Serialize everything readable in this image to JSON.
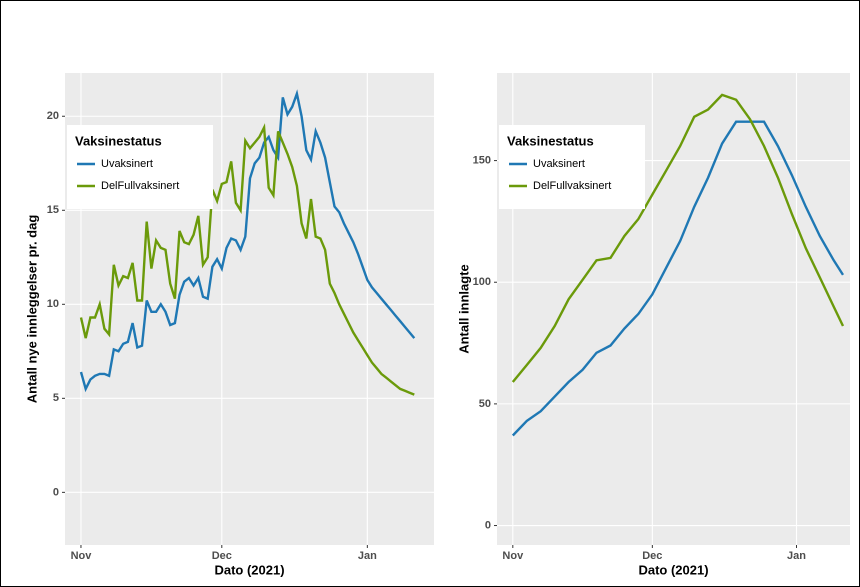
{
  "chart_data": [
    {
      "type": "line",
      "xlabel": "Dato (2021)",
      "ylabel": "Antall nye innleggelser pr. dag",
      "legend_title": "Vaksinestatus",
      "grid": true,
      "legend": "upper left",
      "x": [
        0,
        1,
        2,
        3,
        4,
        5,
        6,
        7,
        8,
        9,
        10,
        11,
        12,
        13,
        14,
        15,
        16,
        17,
        18,
        19,
        20,
        21,
        22,
        23,
        24,
        25,
        26,
        27,
        28,
        29,
        30,
        31,
        32,
        33,
        34,
        35,
        36,
        37,
        38,
        39,
        40,
        41,
        42,
        43,
        44,
        45,
        46,
        47,
        48,
        49,
        50,
        51,
        52,
        53,
        54,
        55,
        56,
        57,
        58,
        59,
        60,
        61,
        62,
        63,
        64,
        65,
        66,
        67,
        68,
        69,
        70,
        71
      ],
      "xlim": [
        -3.4,
        75.2
      ],
      "xticks": [
        {
          "value": 0,
          "label": "Nov"
        },
        {
          "value": 30,
          "label": "Dec"
        },
        {
          "value": 61,
          "label": "Jan"
        }
      ],
      "ylim": [
        -2.8,
        22.3
      ],
      "yticks": [
        0,
        5,
        10,
        15,
        20
      ],
      "series": [
        {
          "name": "Uvaksinert",
          "color": "#1f78b4",
          "values": [
            6.4,
            5.5,
            6.0,
            6.2,
            6.3,
            6.3,
            6.2,
            7.6,
            7.5,
            7.9,
            8.0,
            9.0,
            7.7,
            7.8,
            10.2,
            9.6,
            9.6,
            10.0,
            9.6,
            8.9,
            9.0,
            10.5,
            11.2,
            11.4,
            11.0,
            11.4,
            10.4,
            10.3,
            12.0,
            12.4,
            11.9,
            13.0,
            13.5,
            13.4,
            12.9,
            13.6,
            16.7,
            17.5,
            17.8,
            18.6,
            18.9,
            18.2,
            17.8,
            21.0,
            20.1,
            20.5,
            21.2,
            20.0,
            18.2,
            17.7,
            19.2,
            18.6,
            17.8,
            16.5,
            15.2,
            14.9,
            14.3,
            13.8,
            13.3,
            12.7,
            12.0,
            11.3,
            10.9,
            10.6,
            10.3,
            10.0,
            9.7,
            9.4,
            9.1,
            8.8,
            8.5,
            8.2
          ]
        },
        {
          "name": "DelFullvaksinert",
          "color": "#6b9a0a",
          "values": [
            9.3,
            8.2,
            9.3,
            9.3,
            10.0,
            8.7,
            8.4,
            12.1,
            11.0,
            11.5,
            11.4,
            12.2,
            10.2,
            10.2,
            14.4,
            11.9,
            13.4,
            13.0,
            12.9,
            11.1,
            10.3,
            13.9,
            13.3,
            13.2,
            13.7,
            14.7,
            12.1,
            12.5,
            16.1,
            15.5,
            16.4,
            16.5,
            17.6,
            15.4,
            15.0,
            18.7,
            18.3,
            18.6,
            18.9,
            19.4,
            16.2,
            15.8,
            19.2,
            18.6,
            18.0,
            17.3,
            16.3,
            14.3,
            13.5,
            15.6,
            13.6,
            13.5,
            12.9,
            11.1,
            10.6,
            10.0,
            9.5,
            9.0,
            8.5,
            8.1,
            7.7,
            7.3,
            6.9,
            6.6,
            6.3,
            6.1,
            5.9,
            5.7,
            5.5,
            5.4,
            5.3,
            5.2
          ]
        }
      ]
    },
    {
      "type": "line",
      "xlabel": "Dato (2021)",
      "ylabel": "Antall innlagte",
      "legend_title": "Vaksinestatus",
      "grid": true,
      "legend": "upper left",
      "x": [
        0,
        3,
        6,
        9,
        12,
        15,
        18,
        21,
        24,
        27,
        30,
        33,
        36,
        39,
        42,
        45,
        48,
        51,
        54,
        57,
        60,
        63,
        66,
        69,
        71
      ],
      "xlim": [
        -3.4,
        72.5
      ],
      "xticks": [
        {
          "value": 0,
          "label": "Nov"
        },
        {
          "value": 30,
          "label": "Dec"
        },
        {
          "value": 61,
          "label": "Jan"
        }
      ],
      "ylim": [
        -8,
        186
      ],
      "yticks": [
        0,
        50,
        100,
        150
      ],
      "series": [
        {
          "name": "Uvaksinert",
          "color": "#1f78b4",
          "values": [
            37,
            43,
            47,
            53,
            59,
            64,
            71,
            74,
            81,
            87,
            95,
            106,
            117,
            131,
            143,
            157,
            166,
            166,
            166,
            156,
            144,
            131,
            119,
            109,
            103
          ]
        },
        {
          "name": "DelFullvaksinert",
          "color": "#6b9a0a",
          "values": [
            59,
            66,
            73,
            82,
            93,
            101,
            109,
            110,
            119,
            126,
            136,
            146,
            156,
            168,
            171,
            177,
            175,
            167,
            156,
            143,
            128,
            114,
            102,
            90,
            82
          ]
        }
      ]
    }
  ]
}
